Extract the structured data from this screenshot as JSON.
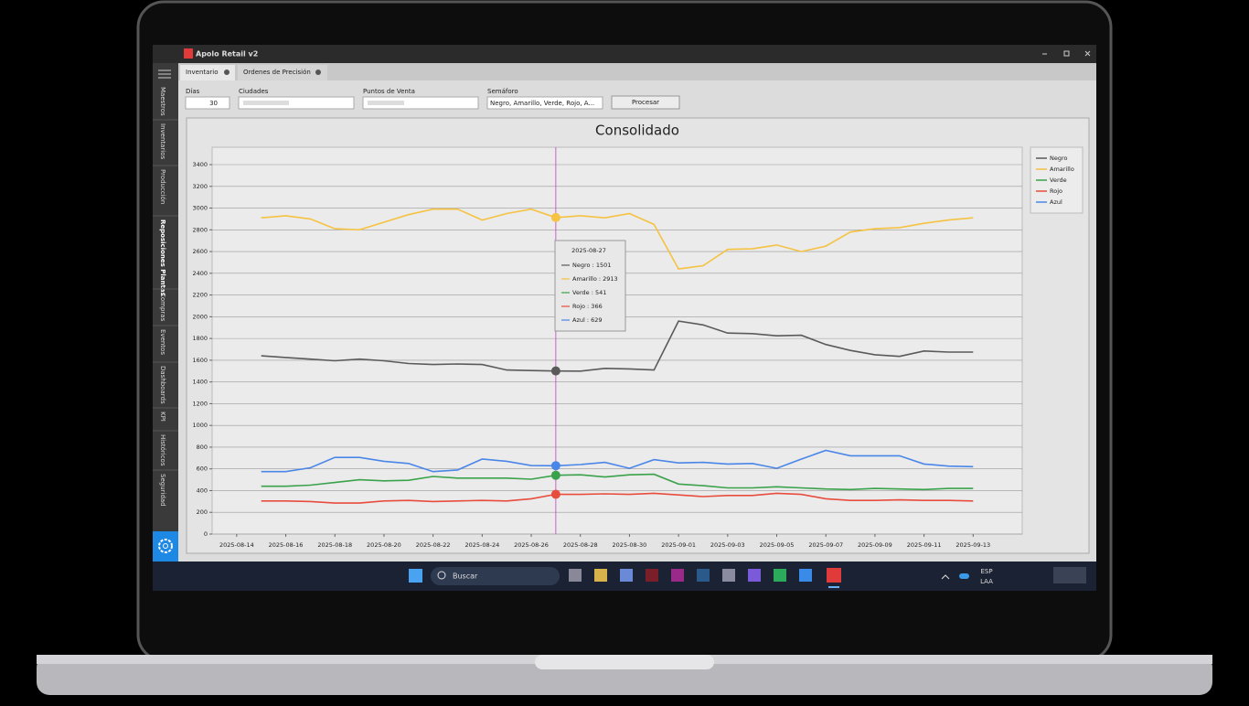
{
  "window": {
    "title": "Apolo Retail v2"
  },
  "tabs": [
    "Inventario",
    "Ordenes de Precisión"
  ],
  "sidebar": [
    "Maestros",
    "Inventarios",
    "Producción",
    "Reposiciones Plantas",
    "Compras",
    "Eventos",
    "Dashboards",
    "KPI",
    "Históricos",
    "Seguridad"
  ],
  "filters": [
    {
      "label": "Días",
      "value": "30"
    },
    {
      "label": "Ciudades"
    },
    {
      "label": "Puntos de Venta"
    },
    {
      "label": "Semáforo",
      "value": "Negro, Amarillo, Verde, Rojo, A..."
    }
  ],
  "button": "Procesar",
  "taskbar": {
    "search": "Buscar",
    "lang": "ESP",
    "layout": "LAA"
  },
  "chart_data": {
    "type": "line",
    "title": "Consolidado",
    "x": [
      "2025-08-15",
      "2025-08-16",
      "2025-08-17",
      "2025-08-18",
      "2025-08-19",
      "2025-08-20",
      "2025-08-21",
      "2025-08-22",
      "2025-08-23",
      "2025-08-24",
      "2025-08-25",
      "2025-08-26",
      "2025-08-27",
      "2025-08-28",
      "2025-08-29",
      "2025-08-30",
      "2025-08-31",
      "2025-09-01",
      "2025-09-02",
      "2025-09-03",
      "2025-09-04",
      "2025-09-05",
      "2025-09-06",
      "2025-09-07",
      "2025-09-08",
      "2025-09-09",
      "2025-09-10",
      "2025-09-11",
      "2025-09-12",
      "2025-09-13"
    ],
    "xlim": [
      "2025-08-13",
      "2025-09-15"
    ],
    "xticks": [
      "2025-08-14",
      "2025-08-16",
      "2025-08-18",
      "2025-08-20",
      "2025-08-22",
      "2025-08-24",
      "2025-08-26",
      "2025-08-28",
      "2025-08-30",
      "2025-09-01",
      "2025-09-03",
      "2025-09-05",
      "2025-09-07",
      "2025-09-09",
      "2025-09-11",
      "2025-09-13"
    ],
    "ylim": [
      0,
      3560
    ],
    "yticks": [
      0,
      200,
      400,
      600,
      800,
      1000,
      1200,
      1400,
      1600,
      1800,
      2000,
      2200,
      2400,
      2600,
      2800,
      3000,
      3200,
      3400
    ],
    "grid": true,
    "legend": "right",
    "series": [
      {
        "name": "Negro",
        "color": "#5a5a5a",
        "values": [
          1640,
          1625,
          1610,
          1595,
          1610,
          1595,
          1570,
          1560,
          1565,
          1560,
          1510,
          1505,
          1501,
          1500,
          1525,
          1520,
          1510,
          1960,
          1925,
          1850,
          1845,
          1825,
          1830,
          1745,
          1690,
          1650,
          1635,
          1685,
          1675,
          1675
        ]
      },
      {
        "name": "Amarillo",
        "color": "#f5c242",
        "values": [
          2910,
          2930,
          2900,
          2810,
          2800,
          2870,
          2940,
          2990,
          2990,
          2890,
          2950,
          2990,
          2913,
          2930,
          2910,
          2950,
          2850,
          2440,
          2470,
          2620,
          2625,
          2660,
          2600,
          2650,
          2780,
          2810,
          2820,
          2860,
          2890,
          2910
        ]
      },
      {
        "name": "Verde",
        "color": "#3aa24a",
        "values": [
          440,
          440,
          450,
          475,
          500,
          490,
          495,
          530,
          515,
          515,
          515,
          505,
          541,
          545,
          525,
          545,
          550,
          460,
          445,
          425,
          425,
          435,
          425,
          415,
          410,
          420,
          415,
          410,
          420,
          420
        ]
      },
      {
        "name": "Rojo",
        "color": "#e84c3d",
        "values": [
          305,
          305,
          300,
          285,
          285,
          305,
          310,
          300,
          305,
          310,
          305,
          325,
          366,
          365,
          370,
          365,
          375,
          360,
          345,
          355,
          355,
          375,
          365,
          325,
          310,
          310,
          315,
          310,
          310,
          305
        ]
      },
      {
        "name": "Azul",
        "color": "#4a86e8",
        "values": [
          575,
          575,
          610,
          705,
          705,
          670,
          650,
          575,
          590,
          690,
          670,
          630,
          629,
          640,
          660,
          605,
          685,
          655,
          660,
          645,
          650,
          605,
          690,
          770,
          720,
          720,
          720,
          645,
          625,
          620
        ]
      }
    ],
    "tooltip": {
      "index": 12,
      "title": "2025-08-27",
      "items": [
        "Negro : 1501",
        "Amarillo : 2913",
        "Verde : 541",
        "Rojo : 366",
        "Azul : 629"
      ]
    }
  }
}
